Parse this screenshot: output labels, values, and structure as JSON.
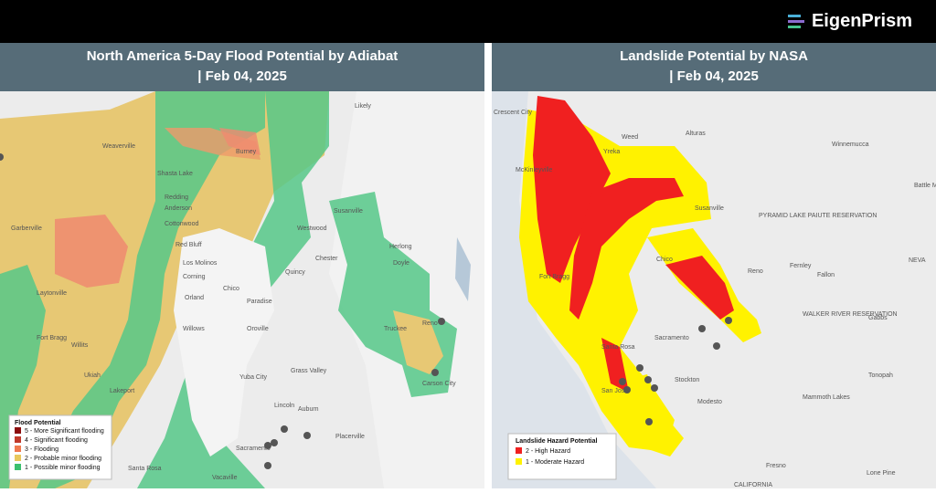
{
  "header": {
    "logo": "EigenPrism"
  },
  "panels": [
    {
      "title_line1": "North America 5-Day Flood Potential by Adiabat",
      "title_line2": "| Feb 04, 2025",
      "legend": {
        "title": "Flood Potential",
        "items": [
          {
            "label": "5 - More Significant flooding",
            "color": "#8b0d0d"
          },
          {
            "label": "4 - Significant flooding",
            "color": "#c0392b"
          },
          {
            "label": "3 - Flooding",
            "color": "#f07a4f"
          },
          {
            "label": "2 - Probable minor flooding",
            "color": "#e9c85c"
          },
          {
            "label": "1 - Possible minor flooding",
            "color": "#3cc06e"
          }
        ]
      },
      "places": [
        "Redding",
        "Anderson",
        "Cottonwood",
        "Red Bluff",
        "Los Molinos",
        "Corning",
        "Orland",
        "Willows",
        "Chico",
        "Paradise",
        "Oroville",
        "Yuba City",
        "Grass Valley",
        "Sacramento",
        "Vacaville",
        "Santa Rosa",
        "Ukiah",
        "Lakeport",
        "Willits",
        "Fort Bragg",
        "Laytonville",
        "Garberville",
        "Weaverville",
        "Shasta Lake",
        "Susanville",
        "Westwood",
        "Chester",
        "Quincy",
        "Truckee",
        "Reno",
        "Carson City",
        "Placerville",
        "Lincoln",
        "Auburn",
        "Doyle",
        "Herlong",
        "Burney",
        "Likely"
      ]
    },
    {
      "title_line1": "Landslide Potential by NASA",
      "title_line2": "| Feb 04, 2025",
      "legend": {
        "title": "Landslide Hazard Potential",
        "items": [
          {
            "label": "2 - High Hazard",
            "color": "#f02020"
          },
          {
            "label": "1 - Moderate Hazard",
            "color": "#fff200"
          }
        ]
      },
      "places": [
        "Crescent City",
        "Yreka",
        "Weed",
        "Alturas",
        "Winnemucca",
        "Battle Mountain",
        "Susanville",
        "PYRAMID LAKE PAIUTE RESERVATION",
        "Chico",
        "Reno",
        "Fernley",
        "Fallon",
        "Fort Bragg",
        "Sacramento",
        "Stockton",
        "Modesto",
        "San Jose",
        "Santa Rosa",
        "WALKER RIVER RESERVATION",
        "Gabbs",
        "Tonopah",
        "Mammoth Lakes",
        "Fresno",
        "Lone Pine",
        "CALIFORNIA",
        "NEVA",
        "McKinleyville"
      ]
    }
  ]
}
